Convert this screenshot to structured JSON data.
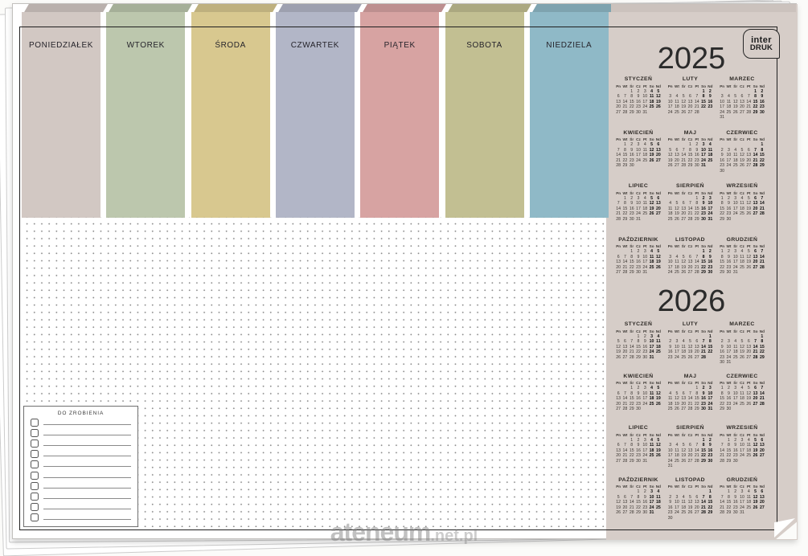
{
  "product": {
    "brand_logo": {
      "line1": "inter",
      "line2": "DRUK"
    },
    "watermark": {
      "main": "ateneum",
      "suffix": ".net.pl"
    }
  },
  "colors": {
    "sidebar_bg": "#d6cdc8",
    "sidebar_edge_band": "#cbc2bd",
    "frame_border": "#1f1f1f"
  },
  "weekday_columns": [
    {
      "label": "PONIEDZIAŁEK",
      "color": "#d2c8c3"
    },
    {
      "label": "WTOREK",
      "color": "#bcc7ad"
    },
    {
      "label": "ŚRODA",
      "color": "#d8c88f"
    },
    {
      "label": "CZWARTEK",
      "color": "#b2b6c7"
    },
    {
      "label": "PIĄTEK",
      "color": "#d7a3a2"
    },
    {
      "label": "SOBOTA",
      "color": "#c2bf92"
    },
    {
      "label": "NIEDZIELA",
      "color": "#8fb9c7"
    }
  ],
  "todo": {
    "title": "DO ZROBIENIA",
    "row_count": 10
  },
  "calendar": {
    "weekday_header": [
      "Pn",
      "Wt",
      "Śr",
      "Cz",
      "Pt",
      "So",
      "Nd"
    ],
    "years": [
      {
        "label": "2025",
        "months": [
          {
            "name": "STYCZEŃ",
            "first_weekday": 2,
            "days": 31
          },
          {
            "name": "LUTY",
            "first_weekday": 5,
            "days": 28
          },
          {
            "name": "MARZEC",
            "first_weekday": 5,
            "days": 31
          },
          {
            "name": "KWIECIEŃ",
            "first_weekday": 1,
            "days": 30
          },
          {
            "name": "MAJ",
            "first_weekday": 3,
            "days": 31
          },
          {
            "name": "CZERWIEC",
            "first_weekday": 6,
            "days": 30
          },
          {
            "name": "LIPIEC",
            "first_weekday": 1,
            "days": 31
          },
          {
            "name": "SIERPIEŃ",
            "first_weekday": 4,
            "days": 31
          },
          {
            "name": "WRZESIEŃ",
            "first_weekday": 0,
            "days": 30
          },
          {
            "name": "PAŹDZIERNIK",
            "first_weekday": 2,
            "days": 31
          },
          {
            "name": "LISTOPAD",
            "first_weekday": 5,
            "days": 30
          },
          {
            "name": "GRUDZIEŃ",
            "first_weekday": 0,
            "days": 31
          }
        ]
      },
      {
        "label": "2026",
        "months": [
          {
            "name": "STYCZEŃ",
            "first_weekday": 3,
            "days": 31
          },
          {
            "name": "LUTY",
            "first_weekday": 6,
            "days": 28
          },
          {
            "name": "MARZEC",
            "first_weekday": 6,
            "days": 31
          },
          {
            "name": "KWIECIEŃ",
            "first_weekday": 2,
            "days": 30
          },
          {
            "name": "MAJ",
            "first_weekday": 4,
            "days": 31
          },
          {
            "name": "CZERWIEC",
            "first_weekday": 0,
            "days": 30
          },
          {
            "name": "LIPIEC",
            "first_weekday": 2,
            "days": 31
          },
          {
            "name": "SIERPIEŃ",
            "first_weekday": 5,
            "days": 31
          },
          {
            "name": "WRZESIEŃ",
            "first_weekday": 1,
            "days": 30
          },
          {
            "name": "PAŹDZIERNIK",
            "first_weekday": 3,
            "days": 31
          },
          {
            "name": "LISTOPAD",
            "first_weekday": 6,
            "days": 30
          },
          {
            "name": "GRUDZIEŃ",
            "first_weekday": 1,
            "days": 31
          }
        ]
      }
    ]
  }
}
